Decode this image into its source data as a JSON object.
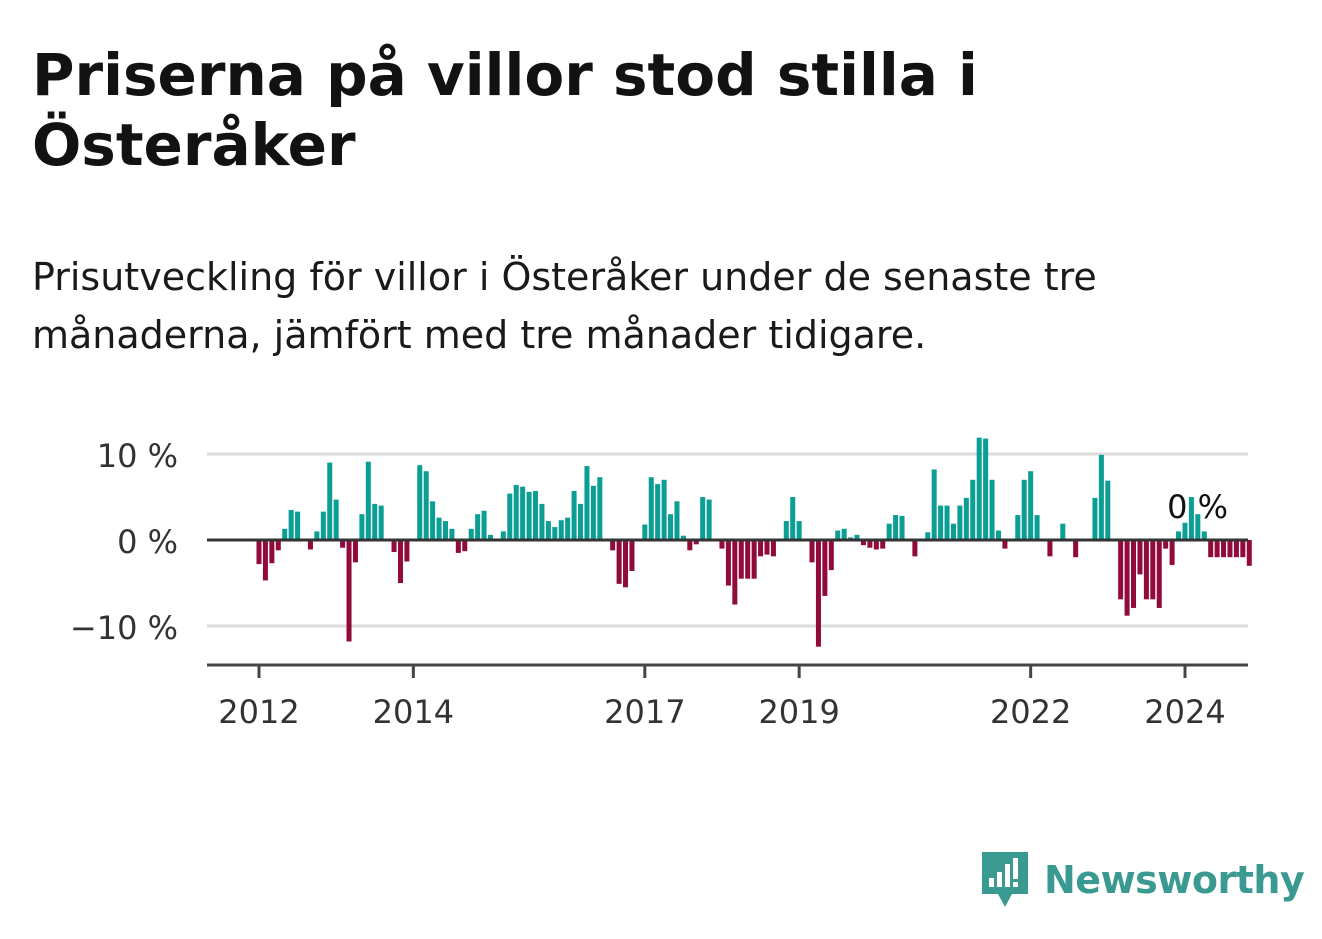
{
  "title": "Priserna på villor stod stilla i Österåker",
  "subtitle": "Prisutveckling för villor i Österåker under de senaste tre månaderna, jämfört med tre månader tidigare.",
  "brand": {
    "name": "Newsworthy",
    "logo_icon": "bar-chart-speech-bubble-icon"
  },
  "colors": {
    "positive": "#0a9e94",
    "negative": "#900a3c",
    "brand": "#3a9a92",
    "grid": "#dddddd",
    "axis": "#444444"
  },
  "chart_data": {
    "type": "bar",
    "title": "",
    "xlabel": "",
    "ylabel": "",
    "ylim": [
      -14,
      13
    ],
    "y_ticks": [
      {
        "value": 10,
        "label": "10 %"
      },
      {
        "value": 0,
        "label": "0 %"
      },
      {
        "value": -10,
        "label": "−10 %"
      }
    ],
    "x_ticks": [
      {
        "value": 2012.0,
        "label": "2012"
      },
      {
        "value": 2014.0,
        "label": "2014"
      },
      {
        "value": 2017.0,
        "label": "2017"
      },
      {
        "value": 2019.0,
        "label": "2019"
      },
      {
        "value": 2022.0,
        "label": "2022"
      },
      {
        "value": 2024.0,
        "label": "2024"
      }
    ],
    "x_unit": "year (decimal, monthly bars)",
    "last_value_label": "0 %",
    "grid": "horizontal",
    "values": [
      -2.8,
      -4.7,
      -2.7,
      -1.2,
      1.3,
      3.5,
      3.3,
      0.0,
      -1.1,
      1.0,
      3.3,
      9.0,
      4.7,
      -0.9,
      -11.8,
      -2.6,
      3.0,
      9.1,
      4.2,
      4.0,
      0.0,
      -1.4,
      -5.0,
      -2.5,
      0.0,
      8.7,
      8.0,
      4.5,
      2.6,
      2.2,
      1.3,
      -1.5,
      -1.3,
      1.3,
      3.0,
      3.4,
      0.6,
      0.0,
      1.0,
      5.4,
      6.4,
      6.2,
      5.6,
      5.7,
      4.2,
      2.2,
      1.5,
      2.3,
      2.6,
      5.7,
      4.2,
      8.6,
      6.3,
      7.3,
      0.0,
      -1.2,
      -5.1,
      -5.5,
      -3.6,
      0.0,
      1.8,
      7.3,
      6.5,
      7.0,
      3.0,
      4.5,
      0.5,
      -1.2,
      -0.5,
      5.0,
      4.7,
      0.0,
      -1.0,
      -5.3,
      -7.5,
      -4.5,
      -4.5,
      -4.5,
      -1.9,
      -1.7,
      -1.9,
      0.0,
      2.2,
      5.0,
      2.2,
      0.0,
      -2.6,
      -12.4,
      -6.5,
      -3.5,
      1.1,
      1.3,
      0.3,
      0.6,
      -0.6,
      -0.9,
      -1.1,
      -1.0,
      1.9,
      2.9,
      2.8,
      0.0,
      -1.9,
      0.0,
      0.9,
      8.2,
      4.0,
      4.0,
      1.9,
      4.0,
      4.9,
      7.0,
      11.9,
      11.8,
      7.0,
      1.1,
      -1.0,
      0.0,
      2.9,
      7.0,
      8.0,
      2.9,
      0.0,
      -1.9,
      0.0,
      1.9,
      0.0,
      -2.0,
      0.0,
      0.0,
      4.9,
      9.9,
      6.9,
      0.0,
      -6.9,
      -8.8,
      -7.9,
      -4.0,
      -6.9,
      -6.9,
      -7.9,
      -1.0,
      -2.9,
      1.0,
      2.0,
      5.0,
      3.0,
      1.0,
      -2.0,
      -2.0,
      -2.0,
      -2.0,
      -2.0,
      -2.0,
      -3.0,
      0.0
    ],
    "x_start": 2012.0,
    "x_step": 0.08333
  }
}
